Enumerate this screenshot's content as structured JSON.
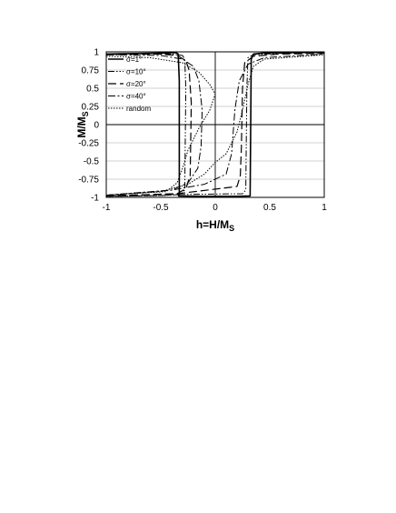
{
  "chart_data": {
    "type": "line",
    "title": "",
    "xlabel": "h=H/M",
    "xlabel_sub": "S",
    "ylabel": "M/M",
    "ylabel_sub": "S",
    "xlim": [
      -1,
      1
    ],
    "ylim": [
      -1,
      1
    ],
    "xticks": [
      -1,
      -0.5,
      0,
      0.5,
      1
    ],
    "xtick_labels": [
      "-1",
      "-0.5",
      "0",
      "0.5",
      "1"
    ],
    "yticks": [
      1,
      0.75,
      0.5,
      0.25,
      0,
      -0.25,
      -0.5,
      -0.75,
      -1
    ],
    "ytick_labels": [
      "1",
      "0.75",
      "0.5",
      "0.25",
      "0",
      "-0.25",
      "-0.5",
      "-0.75",
      "-1"
    ],
    "grid": "horizontal",
    "legend_position": "top-left",
    "series": [
      {
        "name": "σ=1°",
        "dash": "",
        "width": 1.6,
        "upper": [
          [
            -1,
            0.97
          ],
          [
            -0.6,
            0.98
          ],
          [
            -0.45,
            0.985
          ],
          [
            -0.36,
            0.99
          ],
          [
            -0.34,
            0.97
          ],
          [
            -0.33,
            0.6
          ],
          [
            -0.33,
            -0.95
          ],
          [
            -0.34,
            -0.98
          ]
        ],
        "lower": [
          [
            -0.34,
            -0.98
          ],
          [
            -0.1,
            -0.985
          ],
          [
            0.2,
            -0.985
          ],
          [
            0.32,
            -0.98
          ],
          [
            0.33,
            0.9
          ],
          [
            0.35,
            0.97
          ],
          [
            0.45,
            0.985
          ],
          [
            0.7,
            0.99
          ],
          [
            1,
            0.995
          ]
        ]
      },
      {
        "name": "σ=10°",
        "dash": "7,2,1.5,2,1.5,2",
        "width": 1,
        "upper": [
          [
            -1,
            0.97
          ],
          [
            -0.6,
            0.98
          ],
          [
            -0.4,
            0.97
          ],
          [
            -0.3,
            0.95
          ],
          [
            -0.28,
            0.9
          ],
          [
            -0.27,
            0.5
          ],
          [
            -0.28,
            -0.9
          ],
          [
            -0.32,
            -0.96
          ],
          [
            -0.5,
            -0.975
          ],
          [
            -1,
            -0.985
          ]
        ],
        "lower": [
          [
            -1,
            -0.985
          ],
          [
            -0.5,
            -0.975
          ],
          [
            -0.32,
            -0.96
          ],
          [
            0.25,
            -0.95
          ],
          [
            0.28,
            -0.9
          ],
          [
            0.29,
            0.5
          ],
          [
            0.3,
            0.92
          ],
          [
            0.35,
            0.96
          ],
          [
            0.6,
            0.98
          ],
          [
            1,
            0.99
          ]
        ]
      },
      {
        "name": "σ=20°",
        "dash": "9,4",
        "width": 1.2,
        "upper": [
          [
            -1,
            0.96
          ],
          [
            -0.5,
            0.97
          ],
          [
            -0.35,
            0.95
          ],
          [
            -0.27,
            0.88
          ],
          [
            -0.24,
            0.75
          ],
          [
            -0.22,
            0.3
          ],
          [
            -0.23,
            -0.7
          ],
          [
            -0.27,
            -0.88
          ],
          [
            -0.35,
            -0.95
          ],
          [
            -1,
            -0.98
          ]
        ],
        "lower": [
          [
            -1,
            -0.98
          ],
          [
            -0.35,
            -0.95
          ],
          [
            0.2,
            -0.85
          ],
          [
            0.23,
            -0.7
          ],
          [
            0.24,
            -0.3
          ],
          [
            0.25,
            0.5
          ],
          [
            0.27,
            0.85
          ],
          [
            0.35,
            0.94
          ],
          [
            0.6,
            0.97
          ],
          [
            1,
            0.98
          ]
        ]
      },
      {
        "name": "σ=40°",
        "dash": "8,2.5,2,2.5",
        "width": 1,
        "upper": [
          [
            -1,
            0.96
          ],
          [
            -0.5,
            0.95
          ],
          [
            -0.3,
            0.9
          ],
          [
            -0.2,
            0.8
          ],
          [
            -0.15,
            0.6
          ],
          [
            -0.12,
            0.2
          ],
          [
            -0.13,
            -0.3
          ],
          [
            -0.16,
            -0.6
          ],
          [
            -0.25,
            -0.8
          ],
          [
            -0.4,
            -0.9
          ],
          [
            -1,
            -0.97
          ]
        ],
        "lower": [
          [
            -1,
            -0.97
          ],
          [
            -0.4,
            -0.9
          ],
          [
            -0.1,
            -0.82
          ],
          [
            0.1,
            -0.68
          ],
          [
            0.15,
            -0.4
          ],
          [
            0.18,
            0.2
          ],
          [
            0.22,
            0.6
          ],
          [
            0.3,
            0.83
          ],
          [
            0.45,
            0.92
          ],
          [
            1,
            0.97
          ]
        ]
      },
      {
        "name": "random",
        "dash": "1.5,1.5",
        "width": 1,
        "upper": [
          [
            -1,
            0.94
          ],
          [
            -0.6,
            0.92
          ],
          [
            -0.3,
            0.85
          ],
          [
            -0.15,
            0.72
          ],
          [
            -0.05,
            0.55
          ],
          [
            0.0,
            0.42
          ],
          [
            -0.05,
            0.2
          ],
          [
            -0.15,
            -0.05
          ],
          [
            -0.25,
            -0.35
          ],
          [
            -0.3,
            -0.6
          ],
          [
            -0.35,
            -0.8
          ],
          [
            -0.45,
            -0.92
          ],
          [
            -1,
            -0.97
          ]
        ],
        "lower": [
          [
            -1,
            -0.97
          ],
          [
            -0.5,
            -0.92
          ],
          [
            -0.25,
            -0.82
          ],
          [
            -0.1,
            -0.68
          ],
          [
            0.0,
            -0.52
          ],
          [
            0.1,
            -0.4
          ],
          [
            0.2,
            -0.1
          ],
          [
            0.25,
            0.2
          ],
          [
            0.3,
            0.55
          ],
          [
            0.35,
            0.8
          ],
          [
            0.45,
            0.9
          ],
          [
            1,
            0.96
          ]
        ]
      }
    ]
  }
}
